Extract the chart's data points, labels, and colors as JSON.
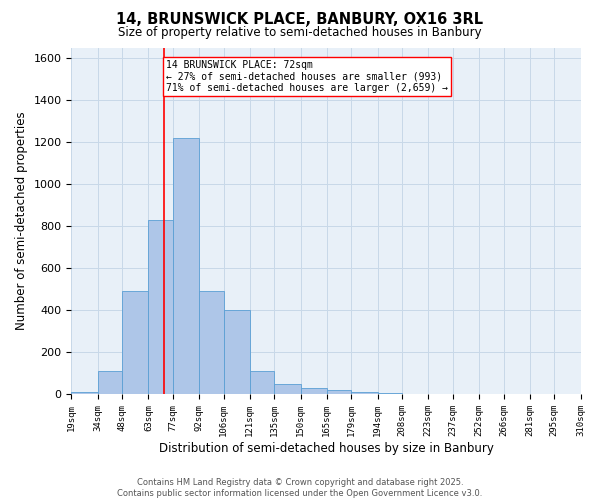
{
  "title": "14, BRUNSWICK PLACE, BANBURY, OX16 3RL",
  "subtitle": "Size of property relative to semi-detached houses in Banbury",
  "xlabel": "Distribution of semi-detached houses by size in Banbury",
  "ylabel": "Number of semi-detached properties",
  "bins": [
    19,
    34,
    48,
    63,
    77,
    92,
    106,
    121,
    135,
    150,
    165,
    179,
    194,
    208,
    223,
    237,
    252,
    266,
    281,
    295,
    310
  ],
  "counts": [
    10,
    110,
    490,
    830,
    1220,
    490,
    400,
    110,
    50,
    30,
    20,
    12,
    8,
    0,
    0,
    0,
    0,
    0,
    0,
    0
  ],
  "bar_color": "#aec6e8",
  "bar_edge_color": "#5a9fd4",
  "grid_color": "#c8d8e8",
  "bg_color": "#e8f0f8",
  "property_line_x": 72,
  "property_line_color": "red",
  "annotation_text": "14 BRUNSWICK PLACE: 72sqm\n← 27% of semi-detached houses are smaller (993)\n71% of semi-detached houses are larger (2,659) →",
  "annotation_box_color": "white",
  "annotation_box_edge": "red",
  "footnote": "Contains HM Land Registry data © Crown copyright and database right 2025.\nContains public sector information licensed under the Open Government Licence v3.0.",
  "ylim": [
    0,
    1650
  ],
  "yticks": [
    0,
    200,
    400,
    600,
    800,
    1000,
    1200,
    1400,
    1600
  ],
  "tick_labels": [
    "19sqm",
    "34sqm",
    "48sqm",
    "63sqm",
    "77sqm",
    "92sqm",
    "106sqm",
    "121sqm",
    "135sqm",
    "150sqm",
    "165sqm",
    "179sqm",
    "194sqm",
    "208sqm",
    "223sqm",
    "237sqm",
    "252sqm",
    "266sqm",
    "281sqm",
    "295sqm",
    "310sqm"
  ]
}
